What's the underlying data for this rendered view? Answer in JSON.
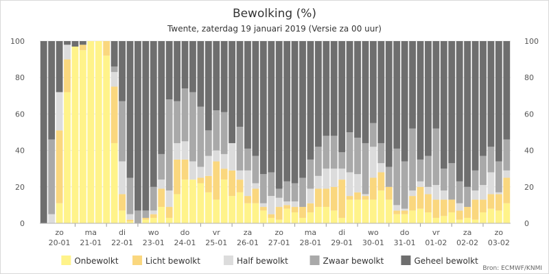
{
  "chart_data": {
    "type": "bar",
    "stacked": true,
    "title": "Bewolking (%)",
    "subtitle": "Twente, zaterdag 19 januari 2019 (Versie za 00 uur)",
    "credit": "Bron: ECMWF/KNMI",
    "ylim": [
      0,
      100
    ],
    "yticks": [
      0,
      20,
      40,
      60,
      80,
      100
    ],
    "grid": true,
    "legend_position": "bottom",
    "day_labels": [
      {
        "day": "zo",
        "date": "20-01"
      },
      {
        "day": "ma",
        "date": "21-01"
      },
      {
        "day": "di",
        "date": "22-01"
      },
      {
        "day": "wo",
        "date": "23-01"
      },
      {
        "day": "do",
        "date": "24-01"
      },
      {
        "day": "vr",
        "date": "25-01"
      },
      {
        "day": "za",
        "date": "26-01"
      },
      {
        "day": "zo",
        "date": "27-01"
      },
      {
        "day": "ma",
        "date": "28-01"
      },
      {
        "day": "di",
        "date": "29-01"
      },
      {
        "day": "wo",
        "date": "30-01"
      },
      {
        "day": "do",
        "date": "31-01"
      },
      {
        "day": "vr",
        "date": "01-02"
      },
      {
        "day": "za",
        "date": "02-02"
      },
      {
        "day": "zo",
        "date": "03-02"
      }
    ],
    "series": [
      {
        "name": "Onbewolkt",
        "color": "#fff38a",
        "values": [
          0,
          0,
          11,
          72,
          97,
          95,
          100,
          100,
          92,
          44,
          7,
          1,
          0,
          2,
          3,
          9,
          3,
          16,
          24,
          24,
          22,
          17,
          13,
          24,
          15,
          17,
          11,
          11,
          7,
          3,
          2,
          8,
          6,
          3,
          6,
          9,
          9,
          7,
          3,
          13,
          13,
          13,
          13,
          18,
          13,
          5,
          5,
          7,
          8,
          6,
          3,
          4,
          6,
          2,
          3,
          2,
          6,
          8,
          7,
          11
        ]
      },
      {
        "name": "Licht bewolkt",
        "color": "#fad77e",
        "values": [
          0,
          0,
          40,
          18,
          0,
          3,
          0,
          0,
          8,
          31,
          9,
          1,
          0,
          1,
          2,
          10,
          6,
          19,
          11,
          0,
          3,
          9,
          21,
          6,
          14,
          7,
          4,
          8,
          2,
          2,
          7,
          2,
          3,
          6,
          5,
          10,
          10,
          13,
          21,
          2,
          4,
          2,
          12,
          10,
          7,
          2,
          2,
          8,
          12,
          10,
          10,
          9,
          7,
          5,
          6,
          11,
          7,
          8,
          9,
          14
        ]
      },
      {
        "name": "Half bewolkt",
        "color": "#dcdcdc",
        "values": [
          0,
          5,
          21,
          8,
          0,
          0,
          0,
          0,
          0,
          8,
          18,
          3,
          0,
          0,
          2,
          5,
          9,
          9,
          10,
          10,
          6,
          11,
          6,
          8,
          15,
          5,
          14,
          3,
          2,
          10,
          5,
          2,
          3,
          0,
          8,
          7,
          11,
          10,
          6,
          13,
          10,
          1,
          17,
          5,
          0,
          3,
          1,
          3,
          3,
          4,
          8,
          5,
          0,
          4,
          0,
          5,
          8,
          12,
          1,
          4
        ]
      },
      {
        "name": "Zwaar bewolkt",
        "color": "#a9a9a9",
        "values": [
          0,
          41,
          0,
          0,
          0,
          0,
          0,
          0,
          0,
          3,
          33,
          20,
          7,
          4,
          13,
          14,
          50,
          23,
          29,
          38,
          33,
          14,
          22,
          23,
          0,
          24,
          12,
          15,
          16,
          13,
          5,
          11,
          10,
          16,
          16,
          16,
          18,
          18,
          9,
          22,
          20,
          28,
          13,
          11,
          11,
          31,
          26,
          34,
          12,
          17,
          31,
          12,
          20,
          12,
          11,
          11,
          16,
          14,
          17,
          17
        ]
      },
      {
        "name": "Geheel bewolkt",
        "color": "#6e6e6e",
        "values": [
          100,
          54,
          28,
          2,
          3,
          2,
          0,
          0,
          0,
          14,
          33,
          75,
          93,
          93,
          80,
          62,
          32,
          33,
          26,
          28,
          36,
          49,
          38,
          39,
          56,
          47,
          59,
          63,
          73,
          72,
          81,
          77,
          78,
          75,
          65,
          58,
          52,
          52,
          61,
          50,
          53,
          56,
          45,
          56,
          69,
          59,
          66,
          48,
          65,
          63,
          48,
          70,
          67,
          77,
          80,
          71,
          63,
          58,
          66,
          54
        ]
      }
    ]
  }
}
